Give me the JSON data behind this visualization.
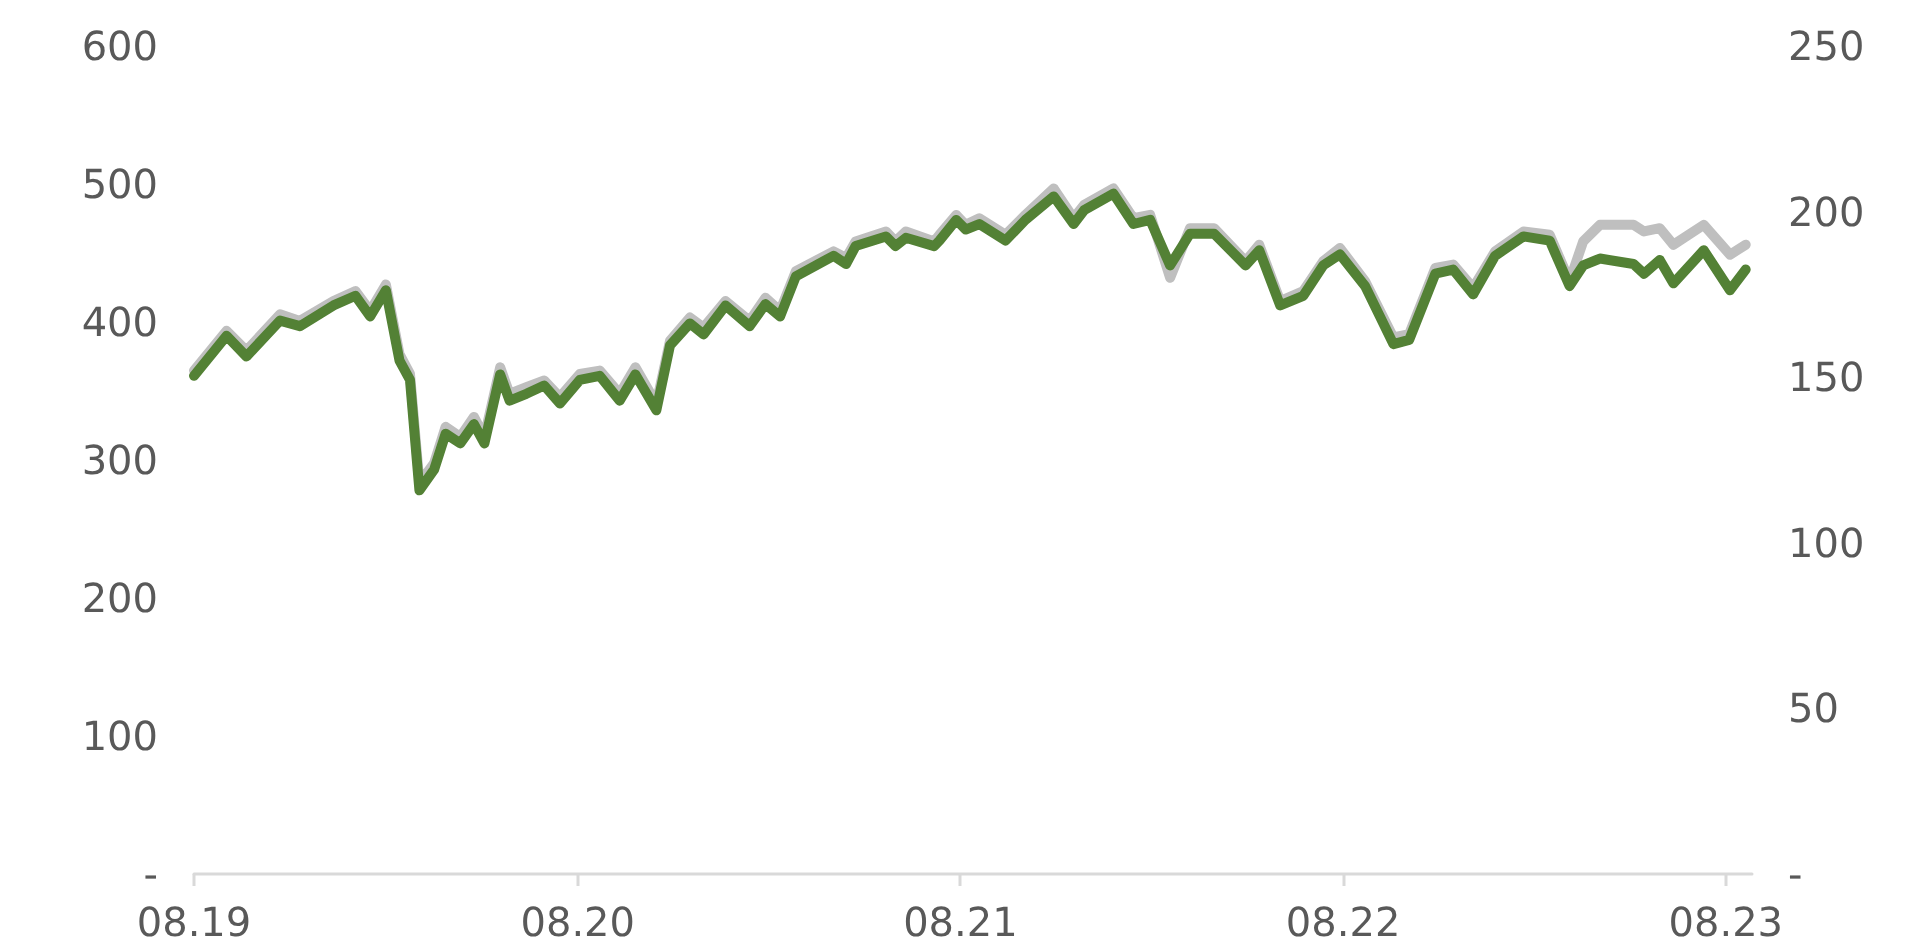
{
  "chart_data": {
    "type": "line",
    "x": [
      "2019-08-01",
      "2019-09-01",
      "2019-09-20",
      "2019-10-22",
      "2019-11-10",
      "2019-12-12",
      "2020-01-02",
      "2020-01-16",
      "2020-01-31",
      "2020-02-13",
      "2020-02-23",
      "2020-03-03",
      "2020-03-17",
      "2020-03-28",
      "2020-04-11",
      "2020-04-24",
      "2020-05-04",
      "2020-05-19",
      "2020-05-28",
      "2020-06-13",
      "2020-06-30",
      "2020-07-15",
      "2020-08-03",
      "2020-08-22",
      "2020-09-10",
      "2020-09-25",
      "2020-10-15",
      "2020-10-28",
      "2020-11-16",
      "2020-11-29",
      "2020-12-20",
      "2021-01-12",
      "2021-01-27",
      "2021-02-10",
      "2021-02-25",
      "2021-04-02",
      "2021-04-14",
      "2021-04-23",
      "2021-05-22",
      "2021-05-31",
      "2021-06-10",
      "2021-07-07",
      "2021-07-12",
      "2021-07-28",
      "2021-08-06",
      "2021-08-19",
      "2021-09-13",
      "2021-10-02",
      "2021-10-29",
      "2021-11-17",
      "2021-11-27",
      "2021-12-25",
      "2022-01-13",
      "2022-01-29",
      "2022-02-17",
      "2022-03-08",
      "2022-03-31",
      "2022-04-30",
      "2022-05-13",
      "2022-06-02",
      "2022-06-24",
      "2022-07-13",
      "2022-07-29",
      "2022-08-22",
      "2022-09-18",
      "2022-10-03",
      "2022-10-28",
      "2022-11-14",
      "2022-12-03",
      "2022-12-24",
      "2023-01-20",
      "2023-02-14",
      "2023-03-05",
      "2023-03-18",
      "2023-04-03",
      "2023-05-05",
      "2023-05-15",
      "2023-05-30",
      "2023-06-12",
      "2023-07-11",
      "2023-08-05",
      "2023-08-20"
    ],
    "series": [
      {
        "color": "#bfbfbf",
        "axis": "y2",
        "values": [
          152,
          164,
          158,
          169,
          167,
          173,
          176,
          170,
          178,
          157,
          151,
          118,
          124,
          135,
          132,
          138,
          132,
          153,
          145,
          147,
          149,
          144,
          151,
          152,
          145,
          153,
          142,
          161,
          168,
          165,
          173,
          167,
          174,
          170,
          182,
          188,
          186,
          191,
          194,
          191,
          194,
          191,
          193,
          199,
          196,
          198,
          193,
          199,
          207,
          198,
          202,
          207,
          198,
          199,
          180,
          195,
          195,
          185,
          190,
          173,
          176,
          185,
          189,
          179,
          162,
          163,
          183,
          184,
          177,
          188,
          194,
          193,
          179,
          191,
          196,
          196,
          194,
          195,
          190,
          196,
          187,
          190
        ]
      },
      {
        "color": "#538135",
        "values": [
          361,
          390,
          375,
          401,
          397,
          412,
          419,
          404,
          423,
          372,
          358,
          278,
          293,
          319,
          312,
          326,
          312,
          362,
          343,
          348,
          354,
          341,
          358,
          361,
          343,
          362,
          336,
          383,
          399,
          391,
          412,
          397,
          413,
          404,
          433,
          448,
          442,
          455,
          462,
          455,
          461,
          455,
          459,
          474,
          467,
          471,
          459,
          474,
          491,
          471,
          481,
          493,
          471,
          474,
          441,
          464,
          464,
          441,
          452,
          412,
          419,
          441,
          449,
          426,
          384,
          387,
          435,
          438,
          420,
          448,
          462,
          459,
          426,
          441,
          446,
          442,
          435,
          445,
          428,
          452,
          423,
          438
        ]
      }
    ],
    "xlim": [
      "2019-08-01",
      "2023-08-26"
    ],
    "xticks": [
      {
        "value": "2019-08-01",
        "label": "08.19"
      },
      {
        "value": "2020-08-01",
        "label": "08.20"
      },
      {
        "value": "2021-08-01",
        "label": "08.21"
      },
      {
        "value": "2022-08-01",
        "label": "08.22"
      },
      {
        "value": "2023-08-01",
        "label": "08.23"
      }
    ],
    "ylim": [
      0,
      600
    ],
    "yticks": [
      {
        "value": 0,
        "label": "-"
      },
      100,
      200,
      300,
      400,
      500,
      600
    ],
    "y2lim": [
      0,
      250
    ],
    "y2ticks": [
      {
        "value": 0,
        "label": "-"
      },
      50,
      100,
      150,
      200,
      250
    ],
    "grid": false,
    "marker": "none",
    "line_style": "solid"
  }
}
